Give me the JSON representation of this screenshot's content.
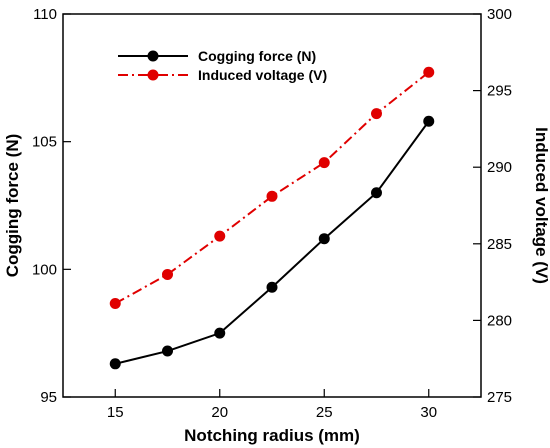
{
  "chart_data": {
    "type": "line",
    "title": "",
    "xlabel": "Notching radius (mm)",
    "ylabel_left": "Cogging force (N)",
    "ylabel_right": "Induced voltage (V)",
    "xlim": [
      12.5,
      32.5
    ],
    "ylim_left": [
      95,
      110
    ],
    "ylim_right": [
      275,
      300
    ],
    "x_ticks": [
      15,
      20,
      25,
      30
    ],
    "y_ticks_left": [
      95,
      100,
      105,
      110
    ],
    "y_ticks_right": [
      275,
      280,
      285,
      290,
      295,
      300
    ],
    "grid": false,
    "legend_position": "top-left",
    "x": [
      15,
      17.5,
      20,
      22.5,
      25,
      27.5,
      30
    ],
    "series": [
      {
        "name": "Cogging force (N)",
        "axis": "left",
        "color": "#000000",
        "line_style": "solid",
        "marker": "circle",
        "values": [
          96.3,
          96.8,
          97.5,
          99.3,
          101.2,
          103.0,
          105.8
        ]
      },
      {
        "name": "Induced voltage (V)",
        "axis": "right",
        "color": "#e00000",
        "line_style": "dash-dot",
        "marker": "circle",
        "values": [
          281.1,
          283.0,
          285.5,
          288.1,
          290.3,
          293.5,
          296.2
        ]
      }
    ]
  }
}
